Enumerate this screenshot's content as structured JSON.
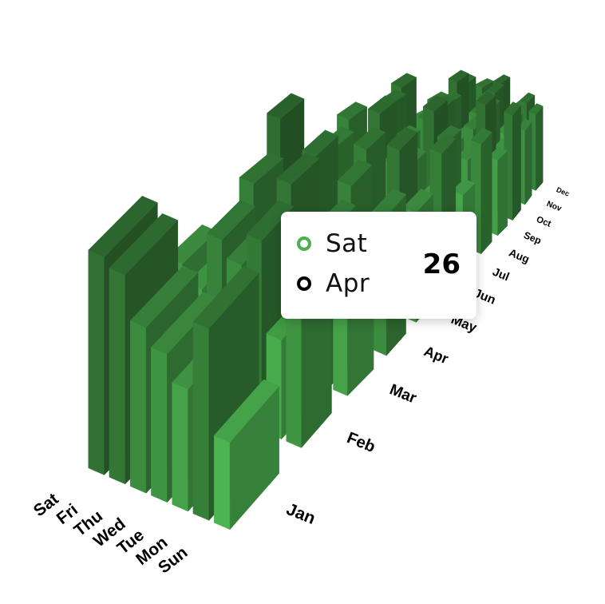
{
  "chart_data": {
    "type": "bar3d",
    "x_axis": {
      "categories": [
        "Sun",
        "Mon",
        "Tue",
        "Wed",
        "Thu",
        "Fri",
        "Sat"
      ]
    },
    "z_axis": {
      "categories": [
        "Jan",
        "Feb",
        "Mar",
        "Apr",
        "May",
        "Jun",
        "Jul",
        "Aug",
        "Sep",
        "Oct",
        "Nov",
        "Dec"
      ]
    },
    "values": [
      [
        10,
        22,
        14,
        17,
        19,
        24,
        25
      ],
      [
        17,
        12,
        23,
        19,
        21,
        14,
        16
      ],
      [
        14,
        20,
        16,
        24,
        17,
        22,
        15
      ],
      [
        19,
        15,
        21,
        13,
        23,
        18,
        26
      ],
      [
        16,
        24,
        13,
        22,
        15,
        20,
        18
      ],
      [
        22,
        13,
        18,
        17,
        24,
        16,
        21
      ],
      [
        13,
        21,
        25,
        15,
        18,
        23,
        14
      ],
      [
        20,
        16,
        14,
        23,
        20,
        13,
        24
      ],
      [
        15,
        25,
        19,
        16,
        22,
        21,
        17
      ],
      [
        23,
        14,
        22,
        20,
        13,
        25,
        19
      ],
      [
        18,
        19,
        15,
        24,
        21,
        16,
        23
      ],
      [
        21,
        23,
        20,
        14,
        25,
        19,
        22
      ]
    ],
    "value_range": [
      0,
      26
    ],
    "colors": {
      "light": "#5ee064",
      "dark": "#2f6d31"
    },
    "tooltip": {
      "series": {
        "label": "Sat",
        "color": "#4caf50"
      },
      "category": {
        "label": "Apr",
        "color": "#000000"
      },
      "value": "26"
    }
  }
}
